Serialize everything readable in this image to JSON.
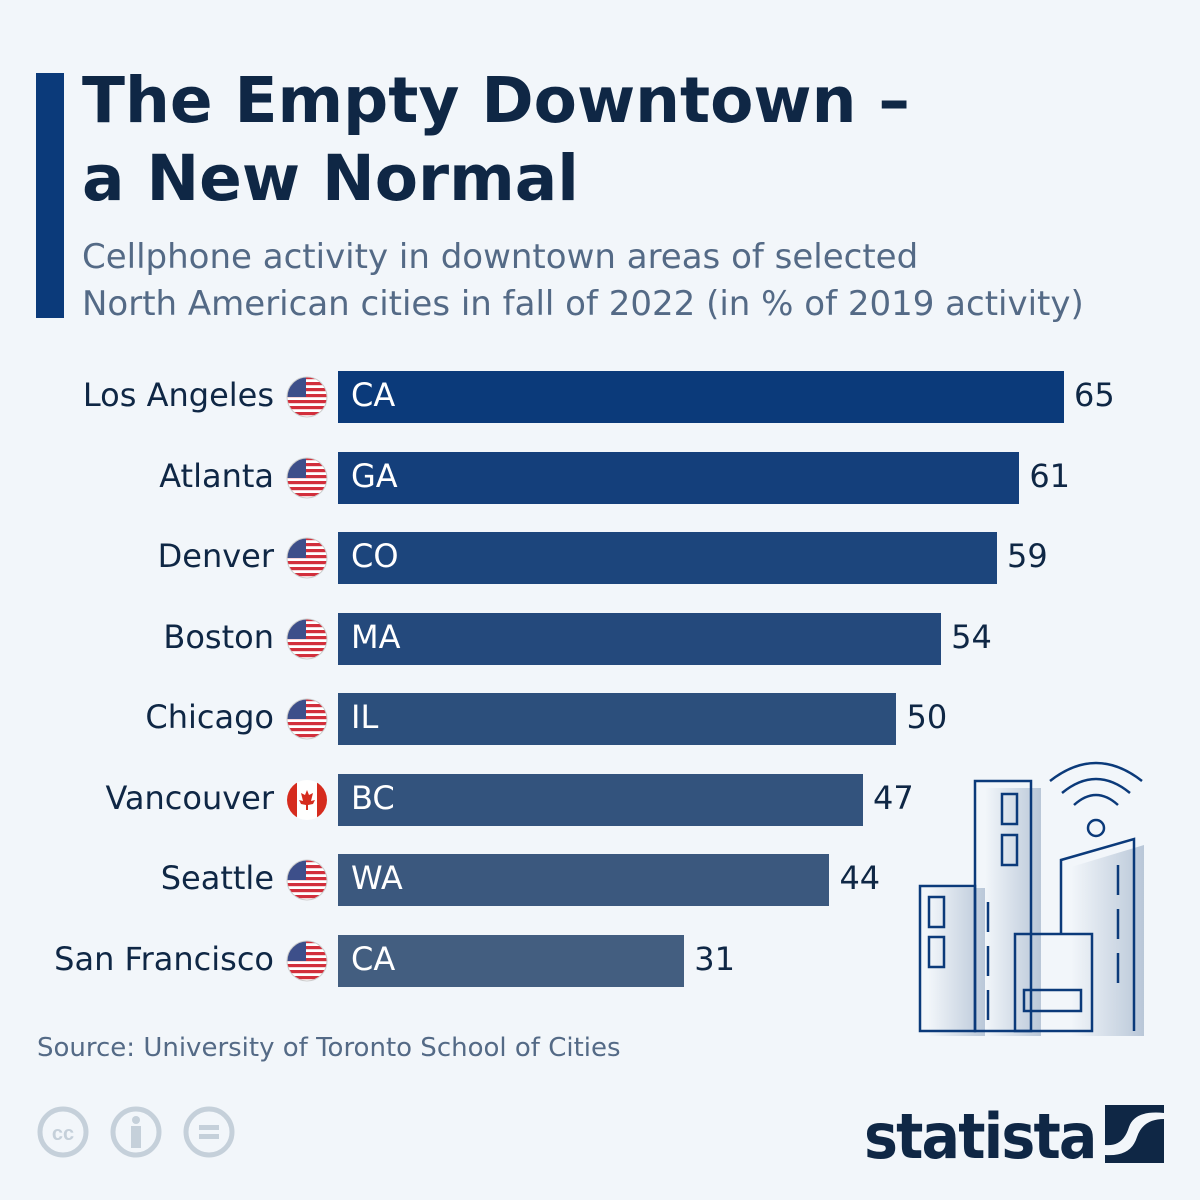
{
  "title": "The Empty Downtown – a New Normal",
  "title_lines": [
    "The Empty Downtown –",
    "a New Normal"
  ],
  "subtitle_lines": [
    "Cellphone activity in downtown areas of selected",
    "North American cities in fall of 2022 (in % of 2019 activity)"
  ],
  "source": "Source: University of Toronto School of Cities",
  "brand": "statista",
  "colors": {
    "bar_top": "#0b3a7a",
    "bar_bottom": "#435e80",
    "text": "#0f2745"
  },
  "chart_data": {
    "type": "bar",
    "orientation": "horizontal",
    "title": "The Empty Downtown – a New Normal",
    "xlabel": "",
    "ylabel": "% of 2019 activity",
    "xlim": [
      0,
      65
    ],
    "grid": false,
    "categories": [
      "Los Angeles",
      "Atlanta",
      "Denver",
      "Boston",
      "Chicago",
      "Vancouver",
      "Seattle",
      "San Francisco"
    ],
    "states": [
      "CA",
      "GA",
      "CO",
      "MA",
      "IL",
      "BC",
      "WA",
      "CA"
    ],
    "flags": [
      "us-flag-icon",
      "us-flag-icon",
      "us-flag-icon",
      "us-flag-icon",
      "us-flag-icon",
      "canada-flag-icon",
      "us-flag-icon",
      "us-flag-icon"
    ],
    "values": [
      65,
      61,
      59,
      54,
      50,
      47,
      44,
      31
    ],
    "bar_colors": [
      "#0b3a7a",
      "#143f7b",
      "#1c457c",
      "#24497c",
      "#2c4f7c",
      "#33537d",
      "#3b587e",
      "#435e80"
    ]
  }
}
